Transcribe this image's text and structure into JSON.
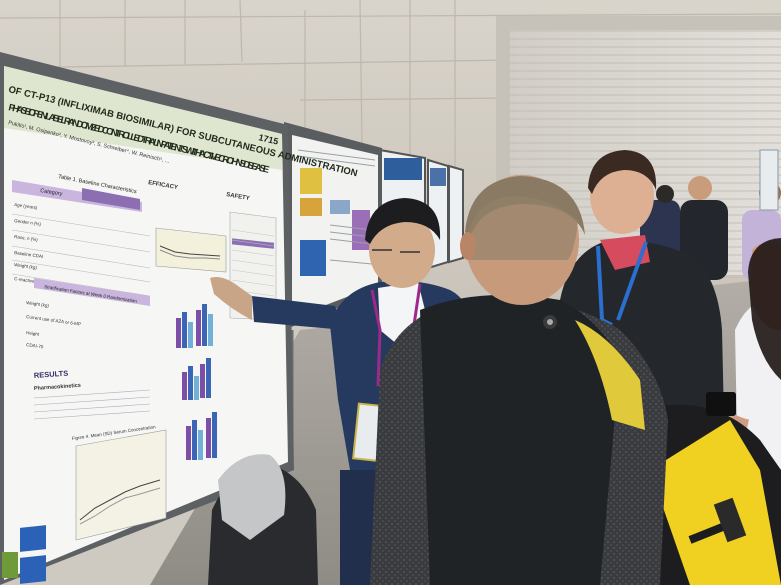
{
  "poster": {
    "title_line1": "OF CT-P13 (INFLIXIMAB BIOSIMILAR) FOR SUBCUTANEOUS ADMINISTRATION",
    "title_line2": "PHASE I OPEN-LABEL RANDOMIZED CONTROLLED TRIAL IN PATIENTS WITH ACTIVE CROHN'S DISEASE",
    "number": "1715",
    "authors": "Pukitis¹, M. Osipenko², Y. Mostovoy³, S. Schreiber⁴, W. Reinisch⁵, ...",
    "table1_title": "Table 1. Baseline Characteristics",
    "table1_header": "Category",
    "efficacy_heading": "EFFICACY",
    "safety_heading": "SAFETY",
    "results_heading": "RESULTS",
    "pk_heading": "Pharmacokinetics",
    "row_labels": [
      "Age (years)",
      "Gender n (%)",
      "Race, n (%)",
      "Baseline CDAI",
      "Weight (kg)",
      "C-reactive protein (mg/dL)",
      "Weight (kg)",
      "Current use of AZA or 6-MP",
      "Height",
      "CDAI-70"
    ],
    "section_label": "Stratification Factors at Week 0 Randomization",
    "figure_caption": "Figure 4. Mean (SD) Serum Concentration"
  },
  "colors": {
    "wall": "#d4cfc7",
    "garage_door": "#d9d6d0",
    "carpet": "#a09d98",
    "poster_header": "#cdd8b4",
    "highlight_purple": "#8c6fb3",
    "suit_navy": "#263a60",
    "lanyard_blue": "#2b6fd1",
    "backpack_yellow": "#f0d020"
  },
  "icons": {
    "camera": "camera-icon"
  }
}
